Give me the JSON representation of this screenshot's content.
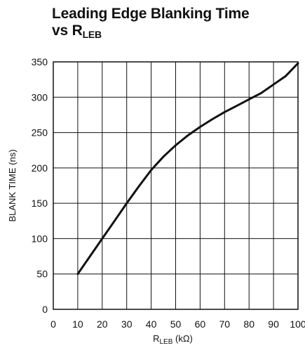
{
  "chart_data": {
    "type": "line",
    "title_line1": "Leading Edge Blanking Time",
    "title_line2_prefix": "vs R",
    "title_line2_sub": "LEB",
    "xlabel_prefix": "R",
    "xlabel_sub": "LEB",
    "xlabel_suffix": " (kΩ)",
    "ylabel": "BLANK TIME (ns)",
    "xlim": [
      0,
      100
    ],
    "ylim": [
      0,
      350
    ],
    "x_ticks": [
      "0",
      "10",
      "20",
      "30",
      "40",
      "50",
      "60",
      "70",
      "80",
      "90",
      "100"
    ],
    "y_ticks": [
      "0",
      "50",
      "100",
      "150",
      "200",
      "250",
      "300",
      "350"
    ],
    "grid": true,
    "series": [
      {
        "x": [
          10,
          15,
          20,
          25,
          30,
          35,
          40,
          45,
          50,
          55,
          60,
          65,
          70,
          75,
          80,
          85,
          90,
          95,
          100
        ],
        "y": [
          50,
          75,
          100,
          125,
          150,
          174,
          197,
          216,
          232,
          246,
          258,
          269,
          279,
          288,
          297,
          306,
          318,
          330,
          348
        ]
      }
    ]
  }
}
